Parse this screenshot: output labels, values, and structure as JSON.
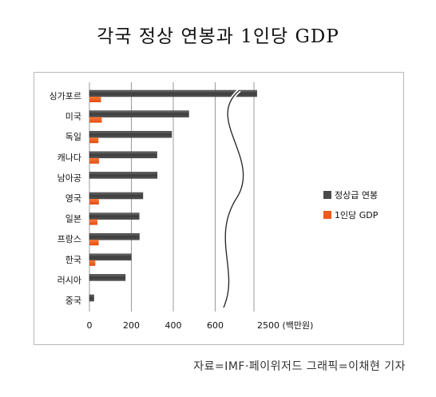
{
  "title": "각국 정상 연봉과 1인당 GDP",
  "source": "자료=IMF·페이위저드 그래픽=이채현 기자",
  "chart_data": {
    "type": "bar",
    "orientation": "horizontal",
    "categories": [
      "싱가포르",
      "미국",
      "독일",
      "캐나다",
      "남아공",
      "영국",
      "일본",
      "프랑스",
      "한국",
      "러시아",
      "중국"
    ],
    "series": [
      {
        "name": "정상급 연봉",
        "color": "#4a4a4a",
        "values": [
          2640,
          474,
          392,
          322,
          323,
          255,
          237,
          238,
          199,
          171,
          21
        ]
      },
      {
        "name": "1인당 GDP",
        "color": "#f05a1a",
        "values": [
          55,
          59,
          43,
          46,
          null,
          45,
          38,
          44,
          28,
          null,
          null
        ]
      }
    ],
    "xticks": [
      "0",
      "200",
      "400",
      "600",
      "2500 (백만원)"
    ],
    "xlim": [
      0,
      2600
    ],
    "axis_break": {
      "from": 600,
      "to": 2500
    },
    "grid": true,
    "legend_position": "right"
  }
}
